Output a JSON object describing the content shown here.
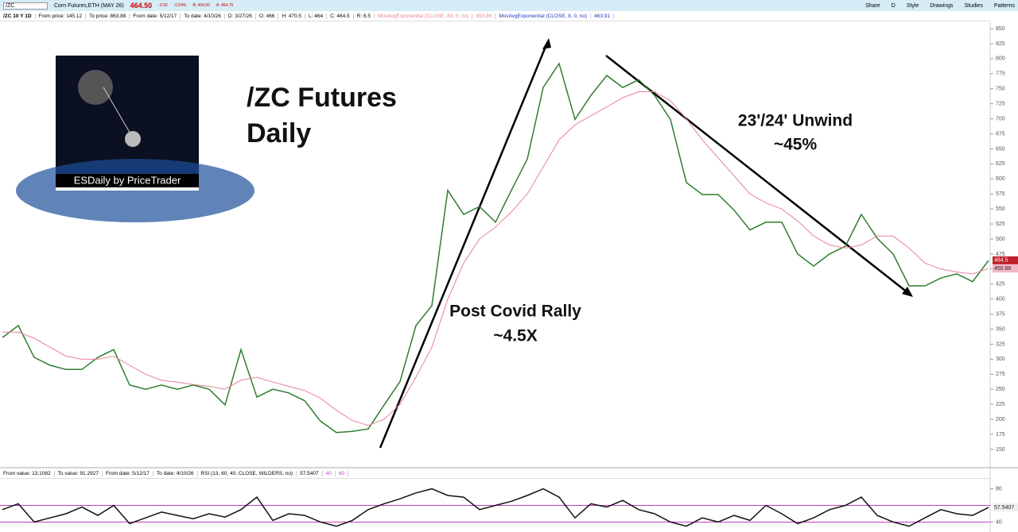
{
  "toolbar": {
    "symbol": "/ZC",
    "description": "Corn Futures,ETH (MAY 26)",
    "last": "464.50",
    "change": "-2.50",
    "change_pct": "-0.54%",
    "bid": "B: 464.50",
    "ask": "A: 464.75",
    "buttons": [
      "Share",
      "D",
      "Style",
      "Drawings",
      "Studies",
      "Patterns"
    ]
  },
  "info_bar": [
    "From price: 145.12",
    "To price: 863.88",
    "From date: 5/12/17",
    "To date: 4/10/26",
    "D: 3/27/26",
    "O: 466",
    "H: 470.5",
    "L: 464",
    "C: 464.5",
    "R: 6.5"
  ],
  "fast_ema": {
    "name": "MovAvgExponential (CLOSE, 8, 0, no)",
    "value": "463.91"
  },
  "logo_caption": "ESDaily by PriceTrader",
  "rsi_info": [
    "From value: 13.1082",
    "To value: 91.2927",
    "From date: 5/12/17",
    "To date: 4/10/26"
  ],
  "chart_data": [
    {
      "type": "line",
      "title": "/ZC Futures",
      "subtitle": "Daily",
      "annotations": [
        "Post Covid Rally",
        "~4.5X",
        "23'/24' Unwind",
        "~45%"
      ],
      "categories": [
        null,
        null,
        null,
        null,
        null,
        null,
        null,
        null,
        null,
        null,
        null,
        null,
        null,
        null,
        null,
        null,
        null,
        null,
        null,
        null,
        null,
        null,
        null,
        null,
        null,
        null,
        null,
        null,
        null,
        null,
        null,
        null,
        null,
        null,
        null,
        null,
        null,
        null,
        null,
        null,
        null,
        null,
        null,
        null,
        null,
        null,
        null,
        null,
        null,
        null,
        null,
        null,
        null,
        null,
        null,
        null,
        null,
        null,
        null,
        null,
        null,
        null,
        null
      ],
      "series": [
        {
          "name": "/ZC 10 Y 1D",
          "color": "#2f7d32",
          "values": [
            336,
            356,
            303,
            290,
            283,
            283,
            303,
            316,
            257,
            250,
            257,
            250,
            257,
            250,
            224,
            316,
            237,
            250,
            244,
            231,
            197,
            178,
            180,
            184,
            224,
            263,
            356,
            389,
            581,
            541,
            554,
            528,
            581,
            633,
            752,
            792,
            699,
            739,
            772,
            752,
            765,
            739,
            699,
            594,
            574,
            574,
            548,
            515,
            528,
            528,
            475,
            455,
            475,
            488,
            541,
            501,
            475,
            422,
            422,
            435,
            442,
            429,
            464.5
          ]
        },
        {
          "name": "MovAvgExponential (CLOSE, 89, 0, no)",
          "color": "#e8829b",
          "values": [
            345,
            345,
            335,
            320,
            305,
            300,
            300,
            305,
            290,
            275,
            265,
            262,
            258,
            255,
            250,
            265,
            270,
            262,
            255,
            248,
            235,
            215,
            198,
            190,
            200,
            225,
            270,
            320,
            400,
            460,
            500,
            520,
            545,
            575,
            620,
            665,
            690,
            705,
            720,
            735,
            745,
            745,
            730,
            700,
            665,
            635,
            605,
            575,
            560,
            550,
            530,
            505,
            490,
            485,
            490,
            505,
            505,
            485,
            460,
            450,
            445,
            442,
            450.86
          ]
        }
      ],
      "ylim": [
        142,
        858
      ],
      "yticks": [
        150,
        175,
        200,
        225,
        250,
        275,
        300,
        325,
        350,
        375,
        400,
        425,
        450,
        475,
        500,
        525,
        550,
        575,
        600,
        625,
        650,
        675,
        700,
        725,
        750,
        775,
        800,
        825,
        850
      ]
    },
    {
      "type": "line",
      "categories": [
        null,
        null,
        null,
        null,
        null,
        null,
        null,
        null,
        null,
        null,
        null,
        null,
        null,
        null,
        null,
        null,
        null,
        null,
        null,
        null,
        null,
        null,
        null,
        null,
        null,
        null,
        null,
        null,
        null,
        null,
        null,
        null,
        null,
        null,
        null,
        null,
        null,
        null,
        null,
        null,
        null,
        null,
        null,
        null,
        null,
        null,
        null,
        null,
        null,
        null,
        null,
        null,
        null,
        null,
        null,
        null,
        null,
        null,
        null,
        null,
        null,
        null,
        null
      ],
      "series": [
        {
          "name": "RSI (13, 60, 40, CLOSE, WILDERS, no)",
          "color": "#111111",
          "values": [
            55,
            62,
            40,
            45,
            50,
            58,
            48,
            60,
            38,
            45,
            52,
            48,
            44,
            50,
            46,
            55,
            70,
            42,
            50,
            48,
            40,
            35,
            42,
            55,
            62,
            68,
            75,
            80,
            72,
            70,
            55,
            60,
            65,
            72,
            80,
            70,
            45,
            62,
            58,
            66,
            55,
            50,
            40,
            35,
            45,
            40,
            48,
            42,
            60,
            50,
            38,
            45,
            55,
            60,
            70,
            48,
            40,
            35,
            45,
            55,
            50,
            48,
            57.5407
          ]
        }
      ],
      "hlines": [
        40,
        60
      ],
      "hline_color": "#c040c0",
      "ylim": [
        28,
        93
      ],
      "yticks": [
        40,
        80
      ]
    }
  ]
}
